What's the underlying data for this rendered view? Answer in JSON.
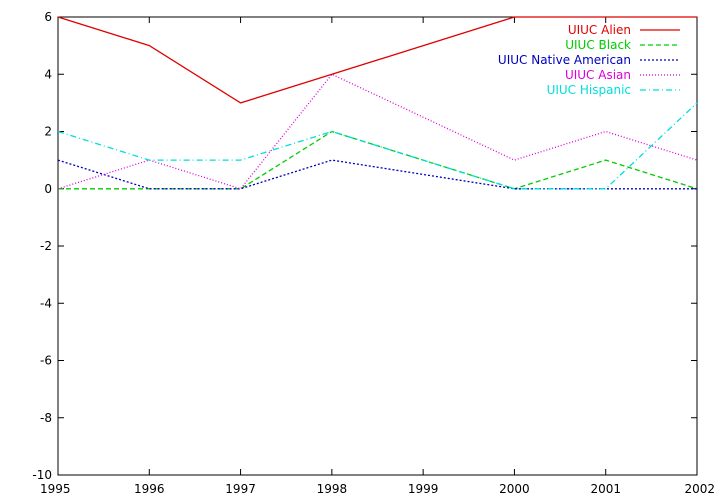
{
  "chart_data": {
    "type": "line",
    "title": "",
    "xlabel": "",
    "ylabel": "",
    "x": [
      1995,
      1996,
      1997,
      1998,
      1999,
      2000,
      2001,
      2002
    ],
    "xlim": [
      1995,
      2002
    ],
    "ylim": [
      -10,
      6
    ],
    "x_ticks": [
      "1995",
      "1996",
      "1997",
      "1998",
      "1999",
      "2000",
      "2001",
      "2002"
    ],
    "y_ticks": [
      "-10",
      "-8",
      "-6",
      "-4",
      "-2",
      "0",
      "2",
      "4",
      "6"
    ],
    "grid": false,
    "legend_position": "top-right",
    "series": [
      {
        "name": "UIUC Alien",
        "color": "#e00000",
        "dash": "solid",
        "points": [
          [
            1995,
            6
          ],
          [
            1996,
            5
          ],
          [
            1997,
            3
          ],
          [
            1998,
            4
          ],
          [
            2000,
            6
          ],
          [
            2001,
            6
          ],
          [
            2002,
            6
          ]
        ]
      },
      {
        "name": "UIUC Black",
        "color": "#00cc00",
        "dash": "dashed",
        "points": [
          [
            1995,
            0
          ],
          [
            1996,
            0
          ],
          [
            1997,
            0
          ],
          [
            1998,
            2
          ],
          [
            2000,
            0
          ],
          [
            2001,
            1
          ],
          [
            2002,
            0
          ]
        ]
      },
      {
        "name": "UIUC Native American",
        "color": "#0000bb",
        "dash": "dotted",
        "points": [
          [
            1995,
            1
          ],
          [
            1996,
            0
          ],
          [
            1997,
            0
          ],
          [
            1998,
            1
          ],
          [
            2000,
            0
          ],
          [
            2001,
            0
          ],
          [
            2002,
            0
          ]
        ]
      },
      {
        "name": "UIUC Asian",
        "color": "#dd00dd",
        "dash": "finedot",
        "points": [
          [
            1995,
            0
          ],
          [
            1996,
            1
          ],
          [
            1997,
            0
          ],
          [
            1998,
            4
          ],
          [
            2000,
            1
          ],
          [
            2001,
            2
          ],
          [
            2002,
            1
          ]
        ]
      },
      {
        "name": "UIUC Hispanic",
        "color": "#00dddd",
        "dash": "dashdot",
        "points": [
          [
            1995,
            2
          ],
          [
            1996,
            1
          ],
          [
            1997,
            1
          ],
          [
            1998,
            2
          ],
          [
            2000,
            0
          ],
          [
            2001,
            0
          ],
          [
            2002,
            3
          ]
        ]
      }
    ]
  }
}
